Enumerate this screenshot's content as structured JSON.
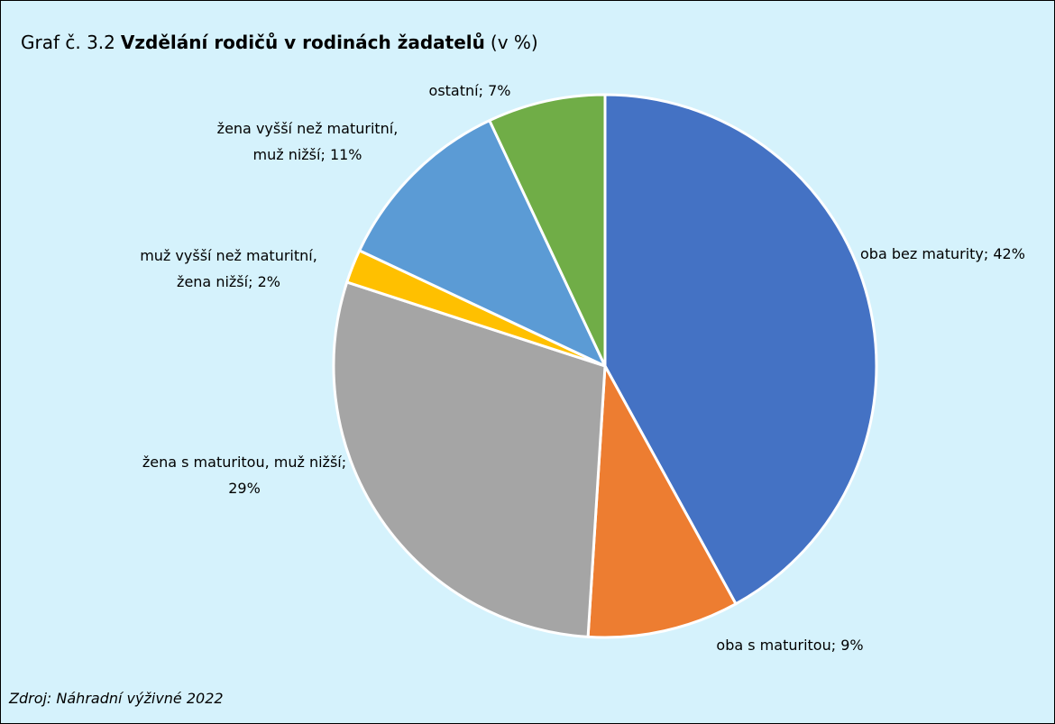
{
  "chart_data": {
    "type": "pie",
    "title_prefix": "Graf č. 3.2",
    "title": "Vzdělání rodičů v rodinách žadatelů",
    "title_suffix": "(v %)",
    "source": "Zdroj: Náhradní výživné 2022",
    "values": [
      42,
      9,
      29,
      2,
      11,
      7
    ],
    "data_labels": [
      "oba bez maturity; 42%",
      "oba s maturitou; 9%",
      "žena s maturitou, muž nižší; 29%",
      "muž vyšší než maturitní, žena nižší; 2%",
      "žena vyšší než maturitní, muž nižší; 11%",
      "ostatní; 7%"
    ],
    "colors": [
      "#4472c4",
      "#ed7d31",
      "#a5a5a5",
      "#ffc000",
      "#5b9bd5",
      "#70ad47"
    ]
  }
}
